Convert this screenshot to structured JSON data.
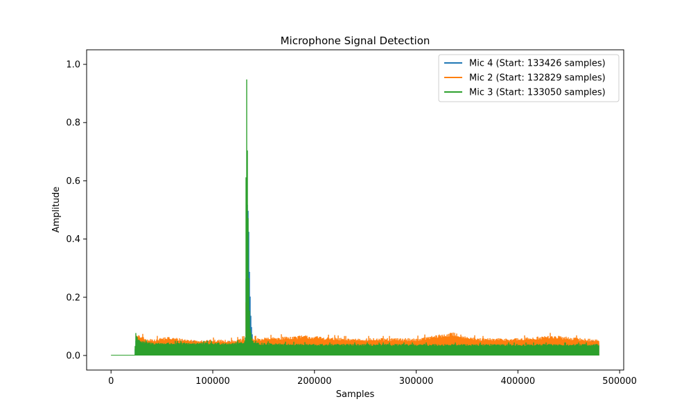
{
  "chart_data": {
    "type": "line",
    "title": "Microphone Signal Detection",
    "xlabel": "Samples",
    "ylabel": "Amplitude",
    "xlim": [
      -24000,
      504000
    ],
    "ylim": [
      -0.05,
      1.05
    ],
    "xticks": [
      0,
      100000,
      200000,
      300000,
      400000,
      500000
    ],
    "yticks": [
      0.0,
      0.2,
      0.4,
      0.6,
      0.8,
      1.0
    ],
    "ytick_labels": [
      "0.0",
      "0.2",
      "0.4",
      "0.6",
      "0.8",
      "1.0"
    ],
    "grid": false,
    "legend_position": "top-right",
    "x_end": 480000,
    "series": [
      {
        "name": "Mic 4 (Start: 133426 samples)",
        "color": "#1f77b4",
        "envelope": [
          [
            0,
            0
          ],
          [
            23500,
            0
          ],
          [
            24000,
            0.06
          ],
          [
            27000,
            0.05
          ],
          [
            40000,
            0.045
          ],
          [
            80000,
            0.045
          ],
          [
            120000,
            0.045
          ],
          [
            132000,
            0.05
          ],
          [
            133426,
            0.55
          ],
          [
            134500,
            0.56
          ],
          [
            135200,
            0.48
          ],
          [
            136000,
            0.31
          ],
          [
            137000,
            0.18
          ],
          [
            138000,
            0.09
          ],
          [
            139500,
            0.06
          ],
          [
            141000,
            0.05
          ],
          [
            160000,
            0.045
          ],
          [
            220000,
            0.045
          ],
          [
            300000,
            0.045
          ],
          [
            400000,
            0.045
          ],
          [
            480000,
            0.045
          ]
        ]
      },
      {
        "name": "Mic 2 (Start: 132829 samples)",
        "color": "#ff7f0e",
        "envelope": [
          [
            0,
            0
          ],
          [
            24000,
            0
          ],
          [
            25000,
            0.07
          ],
          [
            30000,
            0.07
          ],
          [
            35000,
            0.055
          ],
          [
            55000,
            0.065
          ],
          [
            80000,
            0.055
          ],
          [
            120000,
            0.055
          ],
          [
            132000,
            0.06
          ],
          [
            132829,
            0.22
          ],
          [
            133500,
            0.2
          ],
          [
            134500,
            0.1
          ],
          [
            136000,
            0.07
          ],
          [
            140000,
            0.06
          ],
          [
            165000,
            0.065
          ],
          [
            190000,
            0.07
          ],
          [
            230000,
            0.06
          ],
          [
            260000,
            0.06
          ],
          [
            300000,
            0.06
          ],
          [
            336000,
            0.08
          ],
          [
            360000,
            0.06
          ],
          [
            400000,
            0.06
          ],
          [
            433000,
            0.07
          ],
          [
            480000,
            0.055
          ]
        ]
      },
      {
        "name": "Mic 3 (Start: 133050 samples)",
        "color": "#2ca02c",
        "envelope": [
          [
            0,
            0
          ],
          [
            23500,
            0
          ],
          [
            24000,
            0.095
          ],
          [
            25000,
            0.07
          ],
          [
            30000,
            0.05
          ],
          [
            40000,
            0.045
          ],
          [
            80000,
            0.045
          ],
          [
            120000,
            0.045
          ],
          [
            132000,
            0.05
          ],
          [
            133050,
            1.0
          ],
          [
            133700,
            1.0
          ],
          [
            134000,
            0.88
          ],
          [
            134600,
            0.6
          ],
          [
            135200,
            0.35
          ],
          [
            136000,
            0.18
          ],
          [
            137000,
            0.09
          ],
          [
            138500,
            0.06
          ],
          [
            141000,
            0.045
          ],
          [
            200000,
            0.04
          ],
          [
            300000,
            0.04
          ],
          [
            400000,
            0.04
          ],
          [
            480000,
            0.04
          ]
        ]
      }
    ]
  }
}
